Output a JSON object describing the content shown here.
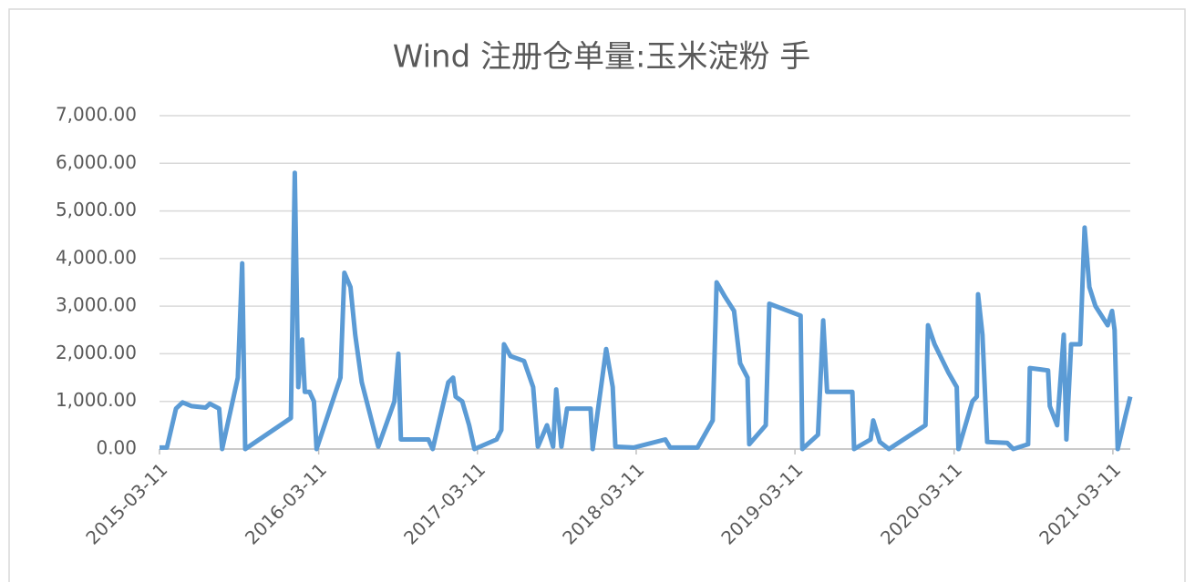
{
  "chart_data": {
    "type": "line",
    "title": "Wind 注册仓单量:玉米淀粉 手",
    "series": [
      {
        "name": "注册仓单量:玉米淀粉",
        "color": "#5b9bd5",
        "x": [
          "2015-03-11",
          "2015-03-28",
          "2015-04-18",
          "2015-05-03",
          "2015-05-24",
          "2015-06-25",
          "2015-07-05",
          "2015-07-26",
          "2015-08-02",
          "2015-09-07",
          "2015-09-17",
          "2015-09-24",
          "2016-01-07",
          "2016-01-16",
          "2016-01-24",
          "2016-02-02",
          "2016-02-08",
          "2016-02-19",
          "2016-02-29",
          "2016-03-06",
          "2016-04-30",
          "2016-05-09",
          "2016-05-23",
          "2016-06-03",
          "2016-06-18",
          "2016-07-05",
          "2016-07-26",
          "2016-09-01",
          "2016-09-10",
          "2016-09-16",
          "2016-11-18",
          "2016-11-28",
          "2017-01-03",
          "2017-01-14",
          "2017-01-20",
          "2017-02-04",
          "2017-02-20",
          "2017-03-04",
          "2017-04-24",
          "2017-05-05",
          "2017-05-11",
          "2017-05-26",
          "2017-06-26",
          "2017-07-17",
          "2017-07-28",
          "2017-08-18",
          "2017-09-01",
          "2017-09-08",
          "2017-09-20",
          "2017-10-03",
          "2017-11-26",
          "2017-12-01",
          "2018-01-01",
          "2018-01-16",
          "2018-01-22",
          "2018-03-05",
          "2018-05-17",
          "2018-05-28",
          "2018-07-30",
          "2018-09-03",
          "2018-09-12",
          "2018-10-01",
          "2018-10-22",
          "2018-11-05",
          "2018-11-22",
          "2018-11-26",
          "2019-01-03",
          "2019-01-11",
          "2019-03-24",
          "2019-03-28",
          "2019-05-03",
          "2019-05-15",
          "2019-05-24",
          "2019-07-21",
          "2019-07-25",
          "2019-09-01",
          "2019-09-07",
          "2019-09-22",
          "2019-10-13",
          "2020-01-05",
          "2020-01-11",
          "2020-01-26",
          "2020-02-27",
          "2020-03-17",
          "2020-03-21",
          "2020-04-22",
          "2020-05-02",
          "2020-05-05",
          "2020-05-15",
          "2020-05-26",
          "2020-07-11",
          "2020-07-25",
          "2020-08-28",
          "2020-09-01",
          "2020-10-13",
          "2020-10-17",
          "2020-11-03",
          "2020-11-18",
          "2020-11-24",
          "2020-12-05",
          "2020-12-26",
          "2021-01-05",
          "2021-01-16",
          "2021-01-30",
          "2021-02-27",
          "2021-03-09",
          "2021-03-15",
          "2021-03-22",
          "2021-04-09",
          "2021-04-20"
        ],
        "values": [
          30,
          30,
          850,
          980,
          900,
          870,
          950,
          850,
          0,
          1500,
          3900,
          0,
          650,
          5800,
          1300,
          2300,
          1200,
          1200,
          1000,
          0,
          1500,
          3700,
          3400,
          2400,
          1400,
          800,
          50,
          1000,
          2000,
          200,
          200,
          0,
          1400,
          1500,
          1100,
          1000,
          500,
          0,
          200,
          400,
          2200,
          1950,
          1850,
          1300,
          50,
          500,
          50,
          1250,
          50,
          850,
          850,
          0,
          2100,
          1300,
          50,
          30,
          200,
          30,
          30,
          600,
          3500,
          3200,
          2900,
          1800,
          1500,
          100,
          500,
          3050,
          2800,
          0,
          300,
          2700,
          1200,
          1200,
          0,
          200,
          600,
          150,
          0,
          500,
          2600,
          2200,
          1600,
          1300,
          0,
          1000,
          1100,
          3250,
          2400,
          150,
          130,
          0,
          100,
          1700,
          1650,
          900,
          500,
          2400,
          200,
          2200,
          2200,
          4650,
          3400,
          3000,
          2600,
          2900,
          2500,
          0,
          700,
          1100
        ]
      }
    ],
    "xlim": [
      "2015-03-11",
      "2021-04-20"
    ],
    "xticks": [
      "2015-03-11",
      "2016-03-11",
      "2017-03-11",
      "2018-03-11",
      "2019-03-11",
      "2020-03-11",
      "2021-03-11"
    ],
    "ylim": [
      0,
      7000
    ],
    "yticks": [
      {
        "value": 0,
        "label": "0.00"
      },
      {
        "value": 1000,
        "label": "1,000.00"
      },
      {
        "value": 2000,
        "label": "2,000.00"
      },
      {
        "value": 3000,
        "label": "3,000.00"
      },
      {
        "value": 4000,
        "label": "4,000.00"
      },
      {
        "value": 5000,
        "label": "5,000.00"
      },
      {
        "value": 6000,
        "label": "6,000.00"
      },
      {
        "value": 7000,
        "label": "7,000.00"
      }
    ],
    "grid": true
  }
}
